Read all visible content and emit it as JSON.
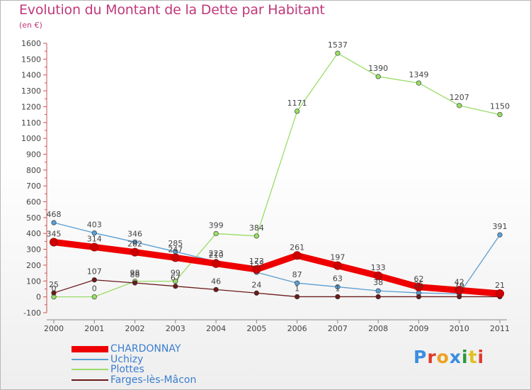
{
  "chart_data": {
    "type": "line",
    "title": "Evolution du Montant de la Dette par Habitant",
    "subtitle": "(en €)",
    "x": [
      "2000",
      "2001",
      "2002",
      "2003",
      "2004",
      "2005",
      "2006",
      "2007",
      "2008",
      "2009",
      "2010",
      "2011"
    ],
    "ylim": [
      -100,
      1600
    ],
    "yticks": [
      -100,
      0,
      100,
      200,
      300,
      400,
      500,
      600,
      700,
      800,
      900,
      1000,
      1100,
      1200,
      1300,
      1400,
      1500,
      1600
    ],
    "grid": false,
    "legend_position": "bottom-left",
    "series": [
      {
        "name": "CHARDONNAY",
        "color": "#ee0000",
        "values": [
          345,
          314,
          282,
          247,
          210,
          173,
          261,
          197,
          133,
          62,
          42,
          21
        ],
        "labels": [
          "345",
          "314",
          "282",
          "247",
          "210",
          "173",
          "261",
          "197",
          "133",
          "62",
          "42",
          "21"
        ]
      },
      {
        "name": "Uchizy",
        "color": "#5a9fd4",
        "values": [
          468,
          403,
          346,
          285,
          223,
          155,
          87,
          63,
          38,
          25,
          19,
          391
        ],
        "labels": [
          "468",
          "403",
          "346",
          "285",
          "223",
          "155",
          "87",
          "63",
          "38",
          "25",
          "19",
          "391"
        ]
      },
      {
        "name": "Plottes",
        "color": "#99dd66",
        "values": [
          0,
          0,
          98,
          99,
          399,
          384,
          1171,
          1537,
          1390,
          1349,
          1207,
          1150
        ],
        "labels": [
          "0",
          "0",
          "98",
          "99",
          "399",
          "384",
          "1171",
          "1537",
          "1390",
          "1349",
          "1207",
          "1150"
        ]
      },
      {
        "name": "Farges-lès-Mâcon",
        "color": "#6b1a1a",
        "values": [
          25,
          107,
          88,
          67,
          46,
          24,
          1,
          1,
          1,
          1,
          1,
          1
        ],
        "labels": [
          "25",
          "107",
          "88",
          "67",
          "46",
          "24",
          "1",
          "1",
          "",
          "",
          "",
          ""
        ]
      }
    ]
  },
  "logo": {
    "text": "Proxiti",
    "letter_colors": [
      "#3a8ee0",
      "#e03a2a",
      "#f0a020",
      "#3a8ee0",
      "#2a9a3a",
      "#e0c020",
      "#e03a2a"
    ]
  }
}
